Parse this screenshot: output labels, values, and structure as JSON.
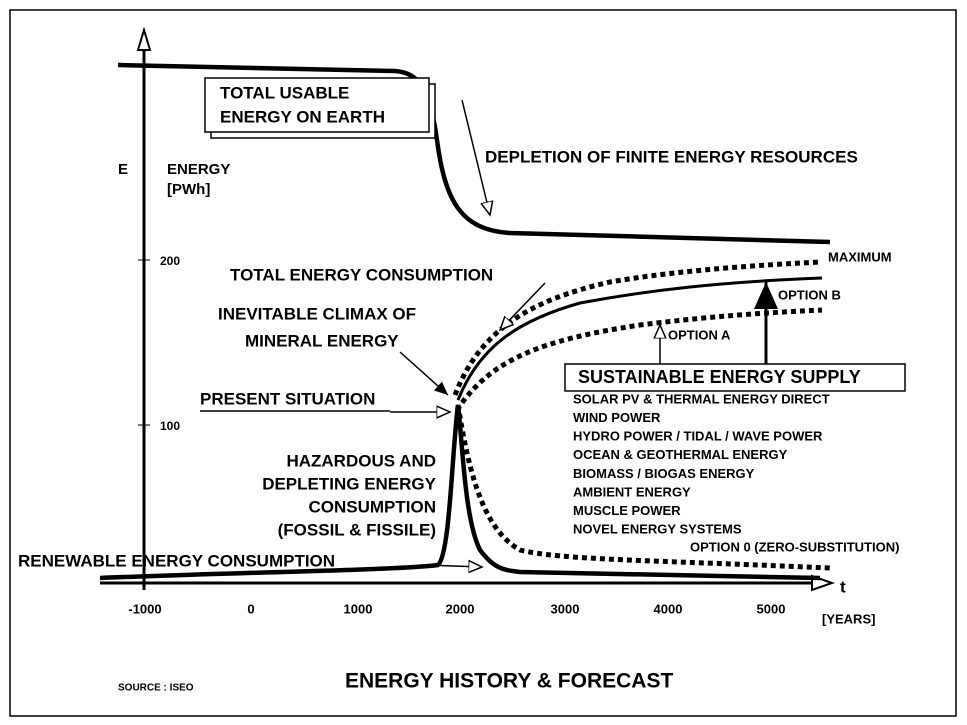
{
  "axis": {
    "y_symbol": "E",
    "y_label": [
      "ENERGY",
      "[PWh]"
    ],
    "y_ticks": [
      "200",
      "100"
    ],
    "x_symbol": "t",
    "x_unit": "[YEARS]",
    "x_ticks": [
      "-1000",
      "0",
      "1000",
      "2000",
      "3000",
      "4000",
      "5000"
    ]
  },
  "labels": {
    "usable_energy": [
      "TOTAL USABLE",
      "ENERGY ON  EARTH"
    ],
    "depletion": "DEPLETION OF FINITE ENERGY RESOURCES",
    "maximum": "MAXIMUM",
    "total_consumption": "TOTAL ENERGY CONSUMPTION",
    "option_b": "OPTION B",
    "climax": [
      "INEVITABLE  CLIMAX OF",
      "MINERAL ENERGY"
    ],
    "option_a": "OPTION A",
    "present": "PRESENT SITUATION",
    "hazardous": [
      "HAZARDOUS  AND",
      "DEPLETING ENERGY",
      "CONSUMPTION",
      "(FOSSIL & FISSILE)"
    ],
    "option_0": "OPTION 0 (ZERO-SUBSTITUTION)",
    "renewable": "RENEWABLE  ENERGY CONSUMPTION"
  },
  "sustainable": {
    "title": "SUSTAINABLE ENERGY SUPPLY",
    "items": [
      "SOLAR PV  & THERMAL ENERGY DIRECT",
      "WIND  POWER",
      "HYDRO POWER / TIDAL / WAVE POWER",
      "OCEAN & GEOTHERMAL ENERGY",
      "BIOMASS / BIOGAS ENERGY",
      "AMBIENT  ENERGY",
      "MUSCLE  POWER",
      "NOVEL ENERGY SYSTEMS"
    ]
  },
  "footer": {
    "source": "SOURCE :  ISEO",
    "title": "ENERGY HISTORY & FORECAST"
  }
}
